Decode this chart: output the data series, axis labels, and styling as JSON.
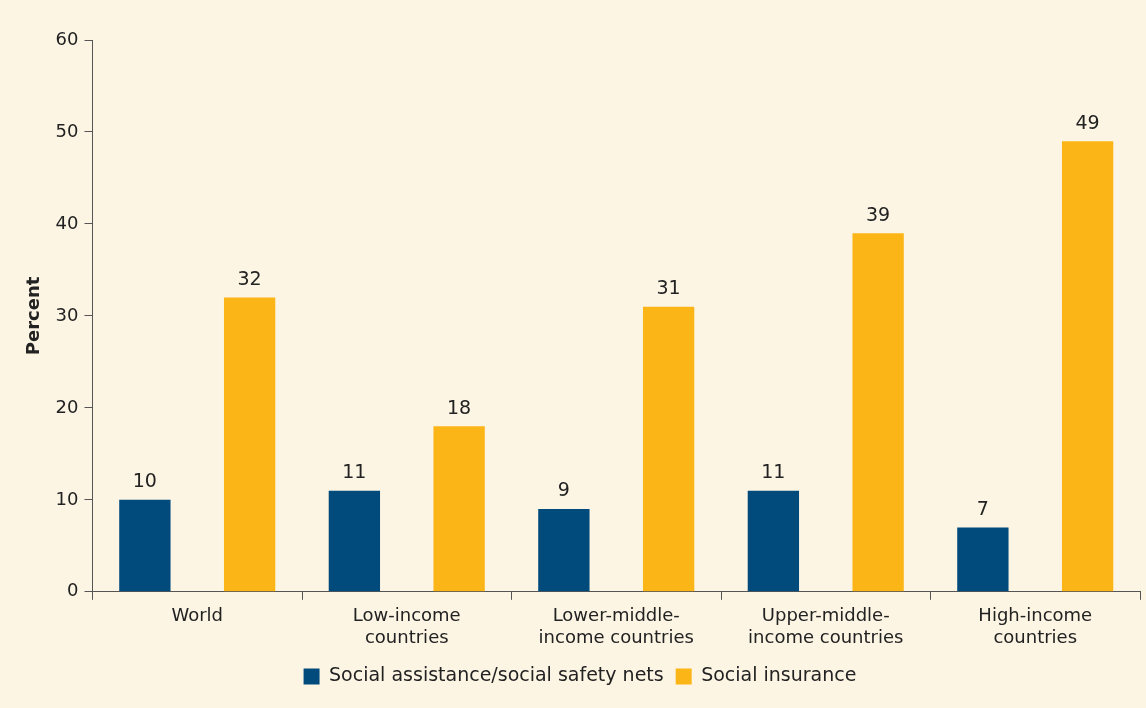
{
  "chart_data": {
    "type": "bar",
    "ylabel": "Percent",
    "categories": [
      "World",
      "Low-income countries",
      "Lower-middle-income countries",
      "Upper-middle-income countries",
      "High-income countries"
    ],
    "series": [
      {
        "name": "Social assistance/social safety nets",
        "color": "#004b7c",
        "values": [
          10,
          11,
          9,
          11,
          7
        ]
      },
      {
        "name": "Social insurance",
        "color": "#fbb516",
        "values": [
          32,
          18,
          31,
          39,
          49
        ]
      }
    ],
    "ylim": [
      0,
      60
    ],
    "yticks": [
      0,
      10,
      20,
      30,
      40,
      50,
      60
    ],
    "grid": false,
    "legend": "bottom",
    "data_labels": true
  }
}
